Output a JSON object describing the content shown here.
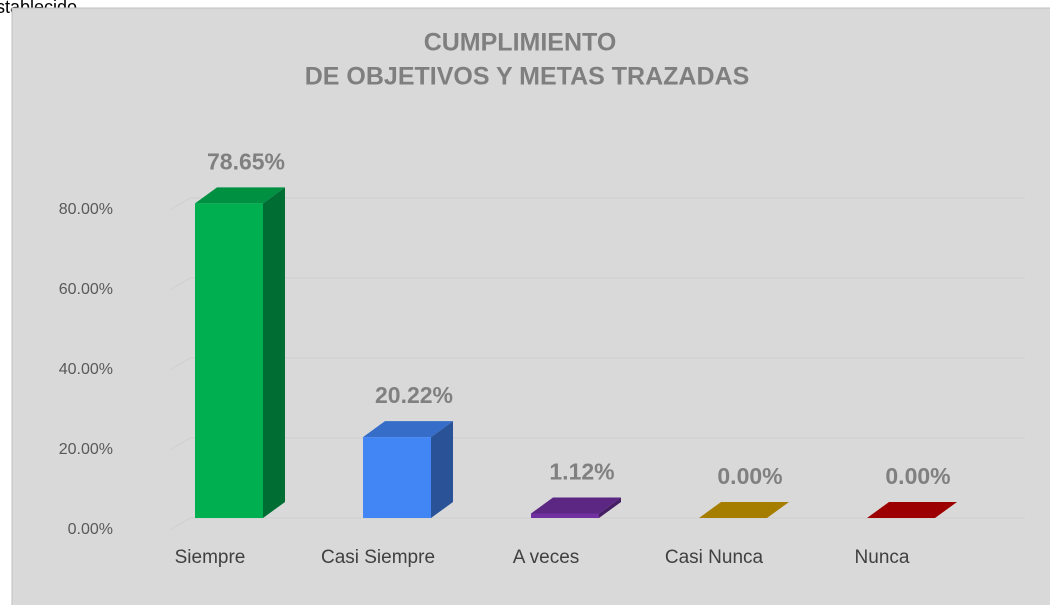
{
  "caption": "establecido",
  "chart_data": {
    "type": "bar3d",
    "title": [
      "CUMPLIMIENTO",
      "DE OBJETIVOS Y METAS TRAZADAS"
    ],
    "categories": [
      "Siempre",
      "Casi Siempre",
      "A veces",
      "Casi Nunca",
      "Nunca"
    ],
    "values": [
      78.65,
      20.22,
      1.12,
      0,
      0
    ],
    "value_labels": [
      "78.65%",
      "20.22%",
      "1.12%",
      "0.00%",
      "0.00%"
    ],
    "colors": [
      "#00b050",
      "#4285f4",
      "#7030a0",
      "#c99a00",
      "#c00000"
    ],
    "ylim": [
      0,
      100
    ],
    "yticks": [
      {
        "value": 0,
        "label": "0.00%"
      },
      {
        "value": 20,
        "label": "20.00%"
      },
      {
        "value": 40,
        "label": "40.00%"
      },
      {
        "value": 60,
        "label": "60.00%"
      },
      {
        "value": 80,
        "label": "80.00%"
      }
    ],
    "grid": true
  }
}
